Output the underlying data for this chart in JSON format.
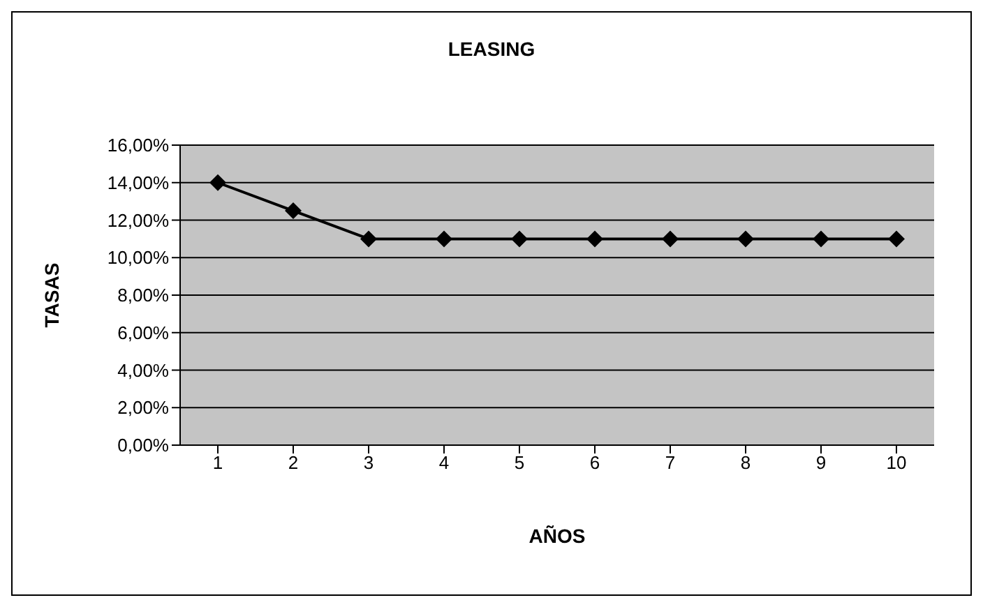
{
  "chart_data": {
    "type": "line",
    "title": "LEASING",
    "xlabel": "AÑOS",
    "ylabel": "TASAS",
    "categories": [
      "1",
      "2",
      "3",
      "4",
      "5",
      "6",
      "7",
      "8",
      "9",
      "10"
    ],
    "series": [
      {
        "color": "#000000",
        "values": [
          14,
          12.5,
          11,
          11,
          11,
          11,
          11,
          11,
          11,
          11
        ]
      }
    ],
    "ylim": [
      0,
      16
    ],
    "yticks": [
      {
        "value": 0,
        "label": "0,00%"
      },
      {
        "value": 2,
        "label": "2,00%"
      },
      {
        "value": 4,
        "label": "4,00%"
      },
      {
        "value": 6,
        "label": "6,00%"
      },
      {
        "value": 8,
        "label": "8,00%"
      },
      {
        "value": 10,
        "label": "10,00%"
      },
      {
        "value": 12,
        "label": "12,00%"
      },
      {
        "value": 14,
        "label": "14,00%"
      },
      {
        "value": 16,
        "label": "16,00%"
      }
    ],
    "grid": "y",
    "marker": "diamond",
    "line_style": "solid",
    "legend": false
  }
}
